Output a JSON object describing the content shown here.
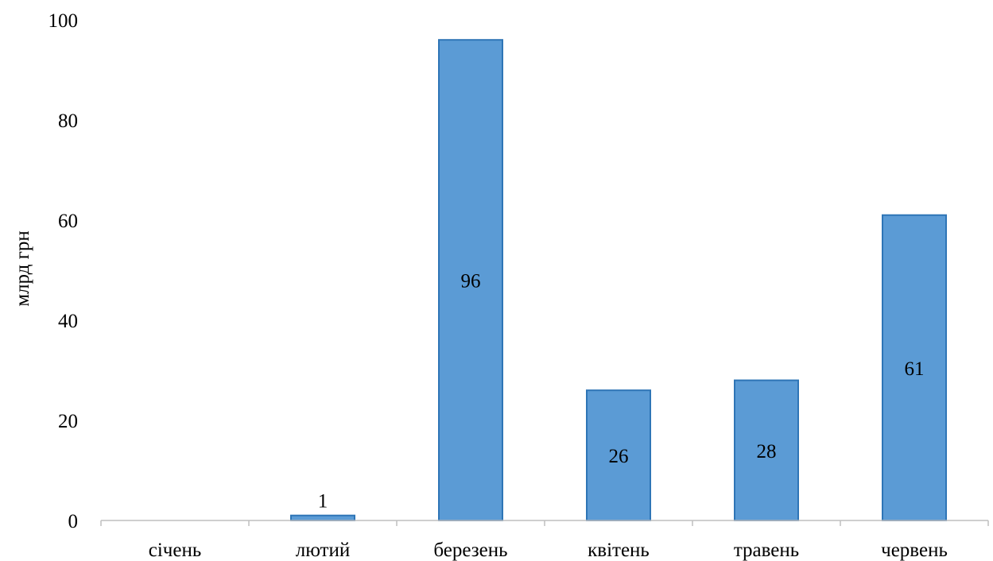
{
  "chart_data": {
    "type": "bar",
    "categories": [
      "січень",
      "лютий",
      "березень",
      "квітень",
      "травень",
      "червень"
    ],
    "values": [
      0,
      1,
      96,
      26,
      28,
      61
    ],
    "data_labels": [
      "",
      "1",
      "96",
      "26",
      "28",
      "61"
    ],
    "title": "",
    "xlabel": "",
    "ylabel": "млрд грн",
    "ylim": [
      0,
      100
    ],
    "yticks": [
      0,
      20,
      40,
      60,
      80,
      100
    ],
    "grid": false,
    "legend": "none",
    "bar_color": "#5b9bd5",
    "bar_edge_color": "#2e75b6"
  }
}
